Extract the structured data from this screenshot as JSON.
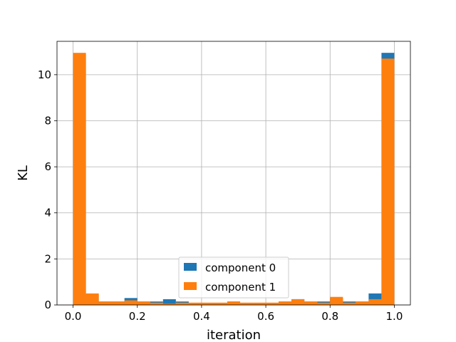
{
  "chart_data": {
    "type": "bar",
    "xlabel": "iteration",
    "ylabel": "KL",
    "xlim": [
      -0.05,
      1.05
    ],
    "ylim": [
      0,
      11.45
    ],
    "xticks": [
      "0.0",
      "0.2",
      "0.4",
      "0.6",
      "0.8",
      "1.0"
    ],
    "yticks": [
      "0",
      "2",
      "4",
      "6",
      "8",
      "10"
    ],
    "grid": true,
    "legend_position": "lower center",
    "bin_edges": [
      0.0,
      0.04,
      0.08,
      0.12,
      0.16,
      0.2,
      0.24,
      0.28,
      0.32,
      0.36,
      0.4,
      0.44,
      0.48,
      0.52,
      0.56,
      0.6,
      0.64,
      0.68,
      0.72,
      0.76,
      0.8,
      0.84,
      0.88,
      0.92,
      0.96,
      1.0
    ],
    "series": [
      {
        "name": "component 0",
        "color": "#1f77b4",
        "values": [
          10.9,
          0.45,
          0.15,
          0.15,
          0.3,
          0.15,
          0.15,
          0.25,
          0.15,
          0.08,
          0.08,
          0.05,
          0.15,
          0.08,
          0.05,
          0.05,
          0.15,
          0.25,
          0.15,
          0.15,
          0.3,
          0.15,
          0.15,
          0.5,
          10.95
        ]
      },
      {
        "name": "component 1",
        "color": "#ff7f0e",
        "values": [
          10.95,
          0.5,
          0.15,
          0.15,
          0.2,
          0.15,
          0.1,
          0.05,
          0.1,
          0.1,
          0.1,
          0.1,
          0.15,
          0.1,
          0.1,
          0.1,
          0.15,
          0.25,
          0.15,
          0.1,
          0.35,
          0.1,
          0.15,
          0.25,
          10.7
        ]
      }
    ]
  }
}
